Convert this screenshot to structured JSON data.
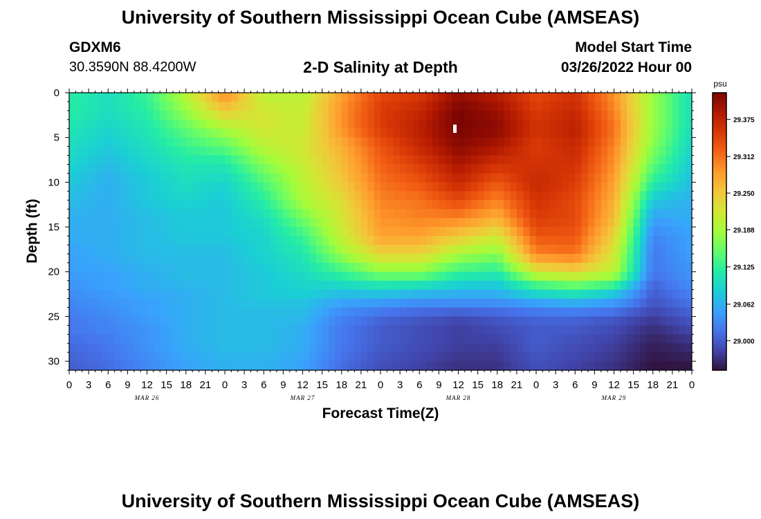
{
  "header": {
    "title": "University of Southern Mississippi Ocean Cube (AMSEAS)",
    "station": "GDXM6",
    "coords": "30.3590N  88.4200W",
    "plot_title": "2-D Salinity at Depth",
    "model_label": "Model Start Time",
    "model_time": "03/26/2022 Hour 00"
  },
  "footer": {
    "title": "University of Southern Mississippi Ocean Cube (AMSEAS)"
  },
  "colors": {
    "palette": [
      "#30123b",
      "#4145ab",
      "#4675ed",
      "#39a2fc",
      "#1bcfd4",
      "#24eca6",
      "#61fc6c",
      "#a4fc3b",
      "#d1e834",
      "#f3c63a",
      "#fe9b2d",
      "#f36315",
      "#d93806",
      "#b11901",
      "#7a0403"
    ]
  },
  "chart_data": {
    "type": "heatmap",
    "title": "2-D Salinity at Depth",
    "xlabel": "Forecast Time(Z)",
    "ylabel": "Depth (ft)",
    "x_range": [
      0,
      96
    ],
    "y_range": [
      31,
      0
    ],
    "x_ticks": [
      0,
      3,
      6,
      9,
      12,
      15,
      18,
      21,
      24,
      27,
      30,
      33,
      36,
      39,
      42,
      45,
      48,
      51,
      54,
      57,
      60,
      63,
      66,
      69,
      72,
      75,
      78,
      81,
      84,
      87,
      90,
      93,
      96
    ],
    "x_tick_labels": [
      "0",
      "3",
      "6",
      "9",
      "12",
      "15",
      "18",
      "21",
      "0",
      "3",
      "6",
      "9",
      "12",
      "15",
      "18",
      "21",
      "0",
      "3",
      "6",
      "9",
      "12",
      "15",
      "18",
      "21",
      "0",
      "3",
      "6",
      "9",
      "12",
      "15",
      "18",
      "21",
      "0"
    ],
    "day_labels": [
      {
        "hour": 12,
        "label": "MAR 26"
      },
      {
        "hour": 36,
        "label": "MAR 27"
      },
      {
        "hour": 60,
        "label": "MAR 28"
      },
      {
        "hour": 84,
        "label": "MAR 29"
      }
    ],
    "y_ticks": [
      0,
      5,
      10,
      15,
      20,
      25,
      30
    ],
    "y_tick_labels": [
      "0",
      "5",
      "10",
      "15",
      "20",
      "25",
      "30"
    ],
    "colorbar": {
      "unit": "psu",
      "min": 28.95,
      "max": 29.42,
      "ticks": [
        29.0,
        29.062,
        29.125,
        29.188,
        29.25,
        29.312,
        29.375
      ],
      "tick_labels": [
        "29.000",
        "29.062",
        "29.125",
        "29.188",
        "29.250",
        "29.312",
        "29.375"
      ]
    },
    "grid": {
      "hours": [
        0,
        6,
        12,
        18,
        24,
        30,
        36,
        42,
        48,
        54,
        60,
        66,
        72,
        78,
        84,
        90,
        96
      ],
      "depths": [
        0,
        2,
        4,
        6,
        8,
        10,
        12,
        14,
        16,
        18,
        20,
        21,
        22,
        23,
        24,
        25,
        26,
        28,
        31
      ],
      "values": [
        [
          29.12,
          29.1,
          29.13,
          29.2,
          29.3,
          29.2,
          29.2,
          29.28,
          29.34,
          29.35,
          29.4,
          29.38,
          29.34,
          29.36,
          29.29,
          29.18,
          29.1
        ],
        [
          29.12,
          29.1,
          29.12,
          29.18,
          29.25,
          29.22,
          29.21,
          29.29,
          29.35,
          29.37,
          29.42,
          29.4,
          29.35,
          29.37,
          29.3,
          29.18,
          29.1
        ],
        [
          29.11,
          29.09,
          29.11,
          29.15,
          29.19,
          29.22,
          29.21,
          29.29,
          29.35,
          29.38,
          29.42,
          29.41,
          29.36,
          29.38,
          29.31,
          29.18,
          29.1
        ],
        [
          29.1,
          29.08,
          29.1,
          29.13,
          29.15,
          29.2,
          29.22,
          29.27,
          29.33,
          29.37,
          29.41,
          29.39,
          29.35,
          29.37,
          29.3,
          29.17,
          29.09
        ],
        [
          29.09,
          29.07,
          29.09,
          29.11,
          29.11,
          29.17,
          29.21,
          29.26,
          29.32,
          29.35,
          29.39,
          29.36,
          29.36,
          29.36,
          29.29,
          29.15,
          29.08
        ],
        [
          29.08,
          29.06,
          29.08,
          29.1,
          29.09,
          29.14,
          29.2,
          29.25,
          29.31,
          29.33,
          29.37,
          29.33,
          29.37,
          29.35,
          29.28,
          29.12,
          29.07
        ],
        [
          29.07,
          29.06,
          29.08,
          29.09,
          29.08,
          29.12,
          29.19,
          29.23,
          29.3,
          29.31,
          29.34,
          29.3,
          29.36,
          29.34,
          29.27,
          29.08,
          29.06
        ],
        [
          29.06,
          29.06,
          29.07,
          29.08,
          29.08,
          29.1,
          29.16,
          29.22,
          29.29,
          29.3,
          29.3,
          29.27,
          29.35,
          29.34,
          29.26,
          29.05,
          29.06
        ],
        [
          29.06,
          29.06,
          29.07,
          29.08,
          29.08,
          29.09,
          29.13,
          29.21,
          29.28,
          29.28,
          29.25,
          29.22,
          29.33,
          29.33,
          29.24,
          29.03,
          29.05
        ],
        [
          29.05,
          29.06,
          29.07,
          29.07,
          29.07,
          29.09,
          29.11,
          29.18,
          29.24,
          29.24,
          29.19,
          29.17,
          29.3,
          29.31,
          29.22,
          29.02,
          29.05
        ],
        [
          29.05,
          29.05,
          29.06,
          29.07,
          29.07,
          29.08,
          29.1,
          29.13,
          29.17,
          29.17,
          29.13,
          29.12,
          29.22,
          29.24,
          29.2,
          29.02,
          29.04
        ],
        [
          29.04,
          29.05,
          29.06,
          29.07,
          29.07,
          29.08,
          29.09,
          29.11,
          29.13,
          29.13,
          29.1,
          29.09,
          29.16,
          29.18,
          29.16,
          29.01,
          29.04
        ],
        [
          29.04,
          29.05,
          29.06,
          29.06,
          29.07,
          29.08,
          29.09,
          29.08,
          29.09,
          29.08,
          29.07,
          29.07,
          29.11,
          29.13,
          29.1,
          29.0,
          29.03
        ],
        [
          29.03,
          29.04,
          29.05,
          29.06,
          29.07,
          29.08,
          29.08,
          29.06,
          29.06,
          29.05,
          29.05,
          29.05,
          29.07,
          29.08,
          29.06,
          29.0,
          29.02
        ],
        [
          29.03,
          29.04,
          29.05,
          29.06,
          29.07,
          29.07,
          29.07,
          29.04,
          29.03,
          29.02,
          29.02,
          29.02,
          29.03,
          29.04,
          29.03,
          28.99,
          29.01
        ],
        [
          29.02,
          29.03,
          29.05,
          29.06,
          29.07,
          29.07,
          29.07,
          29.03,
          29.01,
          29.0,
          28.99,
          29.0,
          29.01,
          29.01,
          29.0,
          28.98,
          29.0
        ],
        [
          29.02,
          29.03,
          29.04,
          29.06,
          29.07,
          29.07,
          29.06,
          29.02,
          29.0,
          28.99,
          28.98,
          28.99,
          29.0,
          29.0,
          28.99,
          28.97,
          28.99
        ],
        [
          29.01,
          29.02,
          29.04,
          29.06,
          29.07,
          29.07,
          29.06,
          29.02,
          29.0,
          28.99,
          28.98,
          28.98,
          29.0,
          28.99,
          28.98,
          28.96,
          28.97
        ],
        [
          29.0,
          29.01,
          29.03,
          29.05,
          29.06,
          29.06,
          29.05,
          29.01,
          28.99,
          28.98,
          28.97,
          28.97,
          28.99,
          28.98,
          28.97,
          28.95,
          28.95
        ]
      ]
    }
  }
}
